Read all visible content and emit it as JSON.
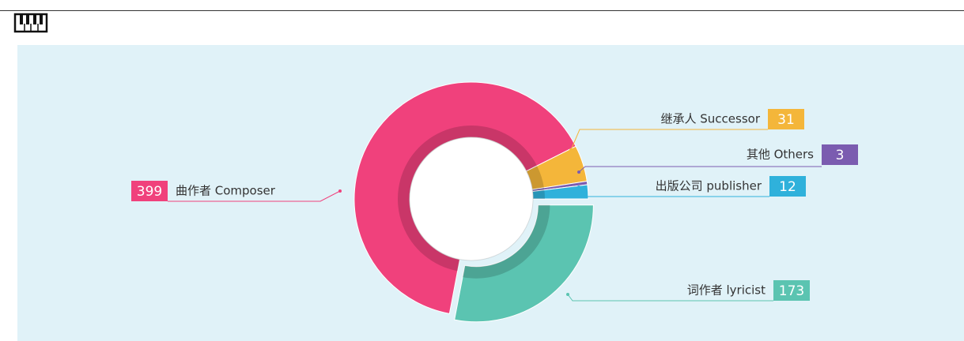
{
  "chart_data": {
    "type": "pie",
    "categories": [
      "词作者 lyricist",
      "曲作者 Composer",
      "继承人 Successor",
      "其他 Others",
      "出版公司 publisher"
    ],
    "values": [
      173,
      399,
      31,
      3,
      12
    ],
    "colors": [
      "#5bc4b1",
      "#f0417c",
      "#f4b63a",
      "#7b5cb0",
      "#2fb1db"
    ]
  }
}
